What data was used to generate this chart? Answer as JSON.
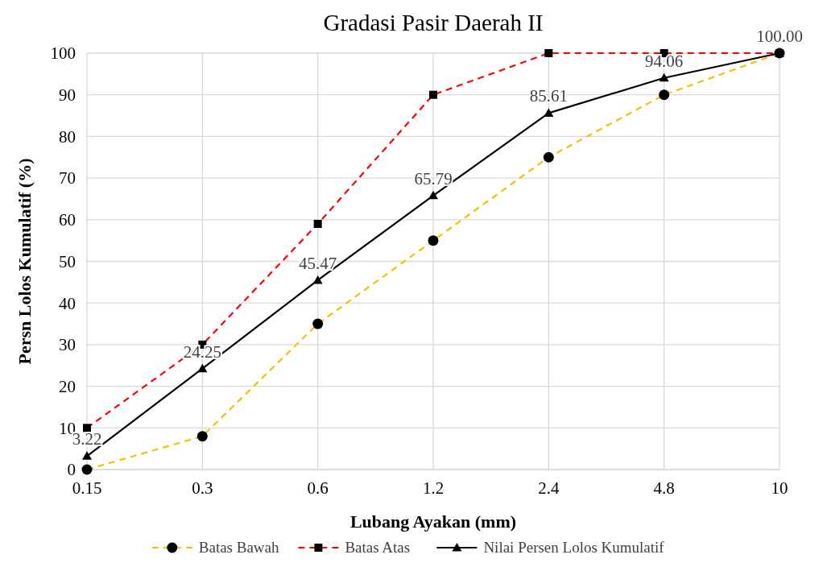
{
  "chart_data": {
    "type": "line",
    "title": "Gradasi Pasir Daerah II",
    "xlabel": "Lubang Ayakan (mm)",
    "ylabel": "Persn Lolos Kumulatif (%)",
    "categories": [
      "0.15",
      "0.3",
      "0.6",
      "1.2",
      "2.4",
      "4.8",
      "10"
    ],
    "series": [
      {
        "name": "Batas Bawah",
        "color": "#f5c000",
        "marker": "circle",
        "line_style": "dashed",
        "values": [
          0,
          8,
          35,
          55,
          75,
          90,
          100
        ]
      },
      {
        "name": "Batas Atas",
        "color": "#ff0000",
        "marker": "square",
        "line_style": "dashed",
        "values": [
          10,
          30,
          59,
          90,
          100,
          100,
          100
        ]
      },
      {
        "name": "Nilai Persen Lolos Kumulatif",
        "color": "#000000",
        "marker": "triangle",
        "line_style": "solid",
        "values": [
          3.22,
          24.25,
          45.47,
          65.79,
          85.61,
          94.06,
          100.0
        ],
        "value_labels": [
          "3.22",
          "24.25",
          "45.47",
          "65.79",
          "85.61",
          "94.06",
          "100.00"
        ]
      }
    ],
    "ylim": [
      0,
      100
    ],
    "yticks": [
      0,
      10,
      20,
      30,
      40,
      50,
      60,
      70,
      80,
      90,
      100
    ],
    "grid": true,
    "legend": "bottom"
  }
}
